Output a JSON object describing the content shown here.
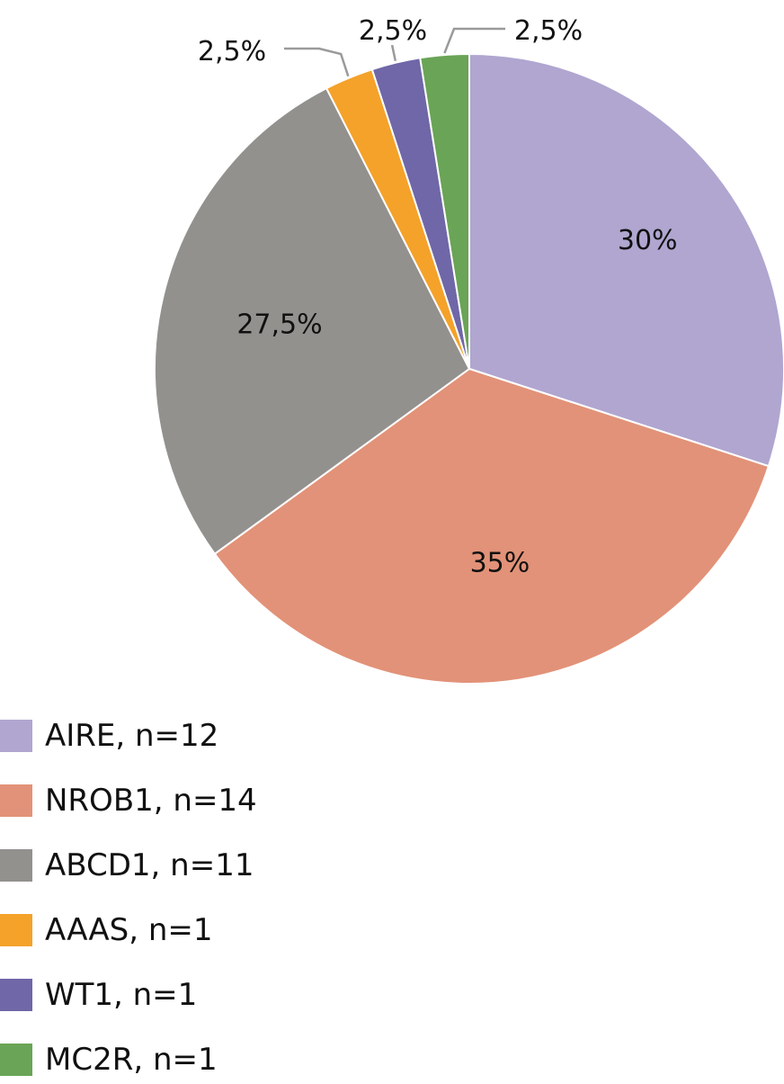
{
  "chart_data": {
    "type": "pie",
    "slices": [
      {
        "name": "AIRE",
        "n": 12,
        "value": 30,
        "label": "30%",
        "legend": "AIRE, n=12",
        "color": "#b0a6d0"
      },
      {
        "name": "NROB1",
        "n": 14,
        "value": 35,
        "label": "35%",
        "legend": "NROB1, n=14",
        "color": "#e29278"
      },
      {
        "name": "ABCD1",
        "n": 11,
        "value": 27.5,
        "label": "27,5%",
        "legend": "ABCD1, n=11",
        "color": "#92918e"
      },
      {
        "name": "AAAS",
        "n": 1,
        "value": 2.5,
        "label": "2,5%",
        "legend": "AAAS, n=1",
        "color": "#f4a22a"
      },
      {
        "name": "WT1",
        "n": 1,
        "value": 2.5,
        "label": "2,5%",
        "legend": "WT1, n=1",
        "color": "#6f67a7"
      },
      {
        "name": "MC2R",
        "n": 1,
        "value": 2.5,
        "label": "2,5%",
        "legend": "MC2R, n=1",
        "color": "#6aa456"
      }
    ],
    "start_angle": "12 o'clock",
    "direction": "clockwise",
    "legend_position": "bottom-left"
  }
}
